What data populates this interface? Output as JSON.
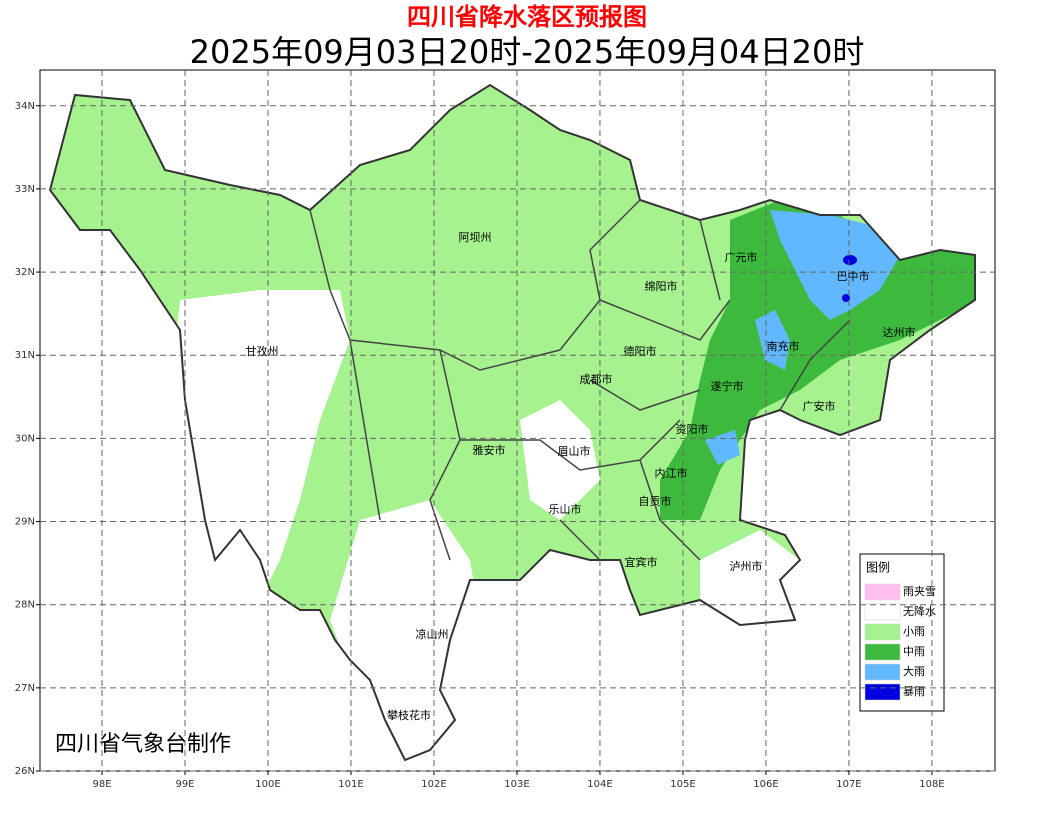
{
  "title": "四川省降水落区预报图",
  "subtitle": "2025年09月03日20时-2025年09月04日20时",
  "credit": "四川省气象台制作",
  "xlim": [
    97.253,
    108.76
  ],
  "ylim": [
    26,
    34.43
  ],
  "x_ticks": [
    {
      "value": 98,
      "label": "98E"
    },
    {
      "value": 99,
      "label": "99E"
    },
    {
      "value": 100,
      "label": "100E"
    },
    {
      "value": 101,
      "label": "101E"
    },
    {
      "value": 102,
      "label": "102E"
    },
    {
      "value": 103,
      "label": "103E"
    },
    {
      "value": 104,
      "label": "104E"
    },
    {
      "value": 105,
      "label": "105E"
    },
    {
      "value": 106,
      "label": "106E"
    },
    {
      "value": 107,
      "label": "107E"
    },
    {
      "value": 108,
      "label": "108E"
    }
  ],
  "y_ticks": [
    {
      "value": 26,
      "label": "26N"
    },
    {
      "value": 27,
      "label": "27N"
    },
    {
      "value": 28,
      "label": "28N"
    },
    {
      "value": 29,
      "label": "29N"
    },
    {
      "value": 30,
      "label": "30N"
    },
    {
      "value": 31,
      "label": "31N"
    },
    {
      "value": 32,
      "label": "32N"
    },
    {
      "value": 33,
      "label": "33N"
    },
    {
      "value": 34,
      "label": "34N"
    }
  ],
  "cities": [
    "阿坝州",
    "广元市",
    "巴中市",
    "绵阳市",
    "达州市",
    "甘孜州",
    "德阳市",
    "南充市",
    "成都市",
    "遂宁市",
    "广安市",
    "资阳市",
    "雅安市",
    "眉山市",
    "内江市",
    "自贡市",
    "乐山市",
    "宜宾市",
    "泸州市",
    "凉山州",
    "攀枝花市"
  ],
  "legend": {
    "title": "图例",
    "items": [
      {
        "label": "雨夹雪",
        "color": "#ffc0f0"
      },
      {
        "label": "无降水",
        "color": "#ffffff"
      },
      {
        "label": "小雨",
        "color": "#a6f28f"
      },
      {
        "label": "中雨",
        "color": "#3dba3d"
      },
      {
        "label": "大雨",
        "color": "#61b8ff"
      },
      {
        "label": "暴雨",
        "color": "#0000e1"
      }
    ]
  }
}
